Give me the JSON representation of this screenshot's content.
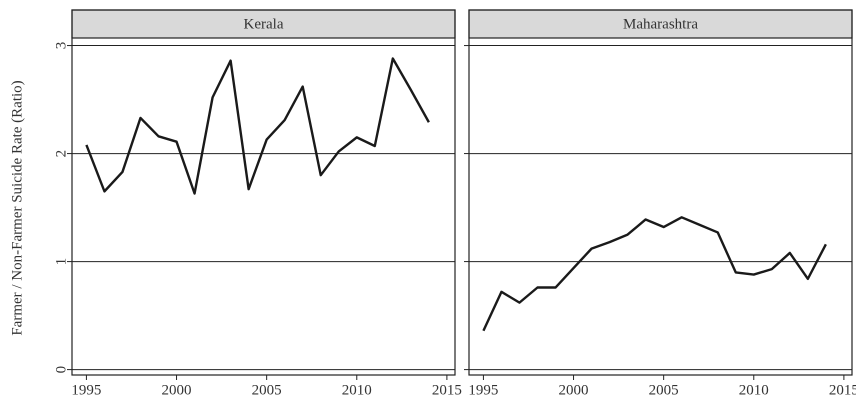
{
  "chart_data": {
    "type": "line",
    "ylabel": "Farmer / Non-Farmer Suicide Rate (Ratio)",
    "x": [
      1995,
      1996,
      1997,
      1998,
      1999,
      2000,
      2001,
      2002,
      2003,
      2004,
      2005,
      2006,
      2007,
      2008,
      2009,
      2010,
      2011,
      2012,
      2013,
      2014
    ],
    "xlim": [
      1994.2,
      2015.45
    ],
    "xticks": [
      1995,
      2000,
      2005,
      2010,
      2015
    ],
    "ylim": [
      -0.05,
      3.07
    ],
    "yticks": [
      0,
      1,
      2,
      3
    ],
    "grid": true,
    "color": "#1a1a1a",
    "panels": [
      {
        "title": "Kerala",
        "values": [
          2.08,
          1.65,
          1.83,
          2.33,
          2.16,
          2.11,
          1.63,
          2.52,
          2.86,
          1.67,
          2.13,
          2.31,
          2.62,
          1.8,
          2.02,
          2.15,
          2.07,
          2.88,
          2.59,
          2.29
        ]
      },
      {
        "title": "Maharashtra",
        "values": [
          0.36,
          0.72,
          0.62,
          0.76,
          0.76,
          0.94,
          1.12,
          1.18,
          1.25,
          1.39,
          1.32,
          1.41,
          1.34,
          1.27,
          0.9,
          0.88,
          0.93,
          1.08,
          0.84,
          1.16
        ]
      }
    ]
  }
}
